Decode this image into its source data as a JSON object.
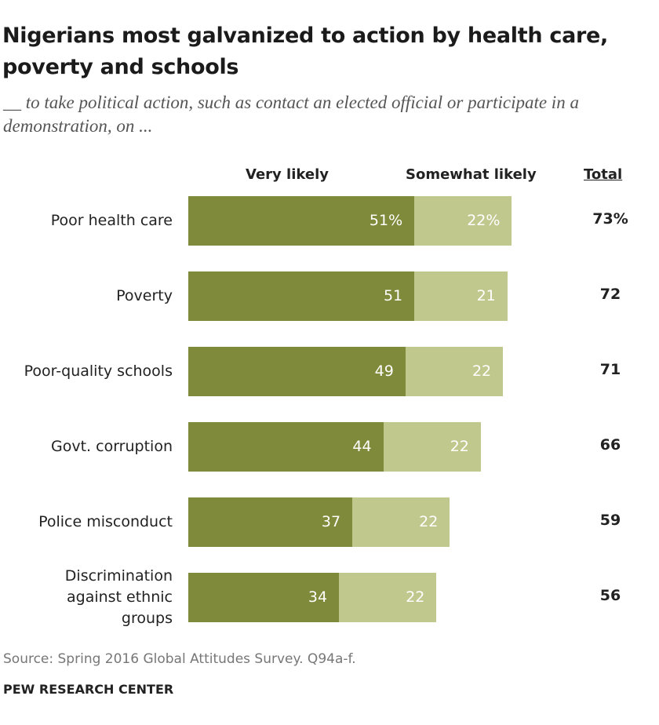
{
  "chart_data": {
    "type": "bar",
    "orientation": "horizontal",
    "stacked": true,
    "title": "Nigerians most galvanized to action by health care, poverty and schools",
    "subtitle": "__ to take political action, such as contact an elected official or participate in a demonstration, on ...",
    "categories": [
      {
        "label_lines": [
          "Poor health care"
        ]
      },
      {
        "label_lines": [
          "Poverty"
        ]
      },
      {
        "label_lines": [
          "Poor-quality schools"
        ]
      },
      {
        "label_lines": [
          "Govt. corruption"
        ]
      },
      {
        "label_lines": [
          "Police misconduct"
        ]
      },
      {
        "label_lines": [
          "Discrimination",
          "against ethnic",
          "groups"
        ]
      }
    ],
    "series": [
      {
        "name": "Very likely",
        "values": [
          51,
          51,
          49,
          44,
          37,
          34
        ],
        "labels": [
          "51%",
          "51",
          "49",
          "44",
          "37",
          "34"
        ],
        "color": "#7f8a3a"
      },
      {
        "name": "Somewhat likely",
        "values": [
          22,
          21,
          22,
          22,
          22,
          22
        ],
        "labels": [
          "22%",
          "21",
          "22",
          "22",
          "22",
          "22"
        ],
        "color": "#c1c88e"
      }
    ],
    "total_header": "Total",
    "totals": [
      73,
      72,
      71,
      66,
      59,
      56
    ],
    "total_labels": [
      "73%",
      "72",
      "71",
      "66",
      "59",
      "56"
    ],
    "xlim": [
      0,
      100
    ],
    "grid": false
  },
  "footer": {
    "source": "Source: Spring 2016 Global Attitudes Survey. Q94a-f.",
    "brand": "PEW RESEARCH CENTER"
  }
}
